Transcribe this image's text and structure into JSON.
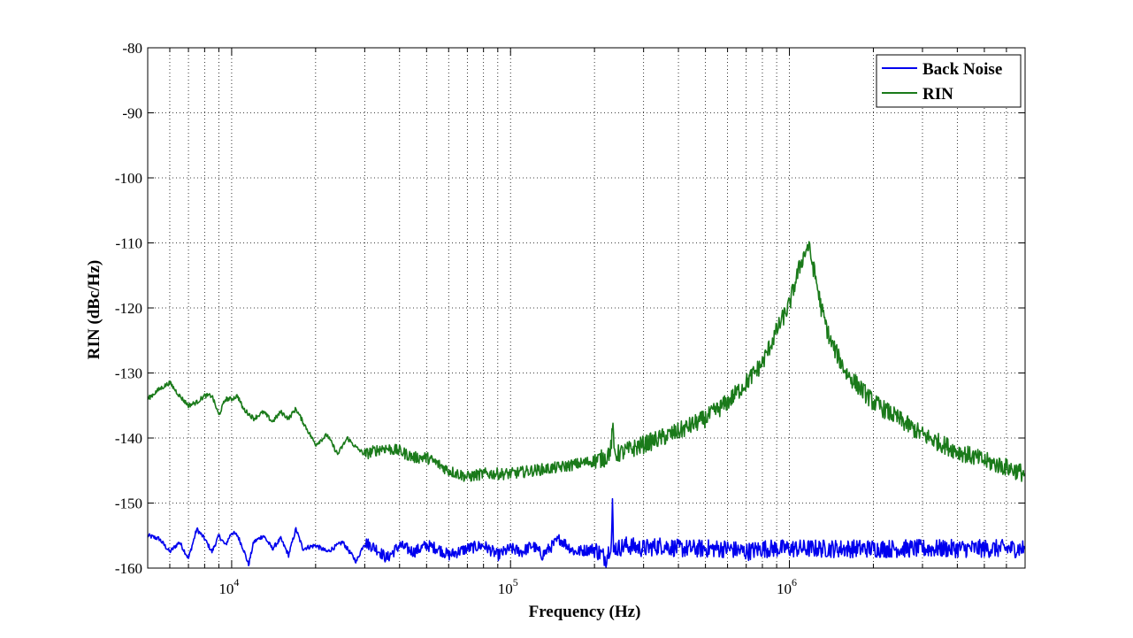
{
  "chart_data": {
    "type": "line",
    "title": "",
    "xlabel": "Frequency (Hz)",
    "ylabel": "RIN (dBc/Hz)",
    "xscale": "log",
    "xlim": [
      5000,
      7000000
    ],
    "ylim": [
      -160,
      -80
    ],
    "yticks": [
      -80,
      -90,
      -100,
      -110,
      -120,
      -130,
      -140,
      -150,
      -160
    ],
    "xticks": [
      {
        "value": 10000,
        "base": "10",
        "exp": "4"
      },
      {
        "value": 100000,
        "base": "10",
        "exp": "5"
      },
      {
        "value": 1000000,
        "base": "10",
        "exp": "6"
      }
    ],
    "grid": true,
    "legend": {
      "placement": "top-right"
    },
    "series": [
      {
        "name": "Back Noise",
        "color": "#0000ee",
        "x": [
          5000,
          5500,
          6000,
          6500,
          7000,
          7500,
          8000,
          8500,
          9000,
          9500,
          10000,
          10500,
          11000,
          11500,
          12000,
          13000,
          14000,
          15000,
          16000,
          17000,
          18000,
          20000,
          22000,
          25000,
          28000,
          30000,
          33000,
          36000,
          40000,
          45000,
          50000,
          55000,
          60000,
          70000,
          80000,
          90000,
          100000,
          110000,
          120000,
          130000,
          150000,
          170000,
          200000,
          220000,
          230000,
          232000,
          234000,
          236000,
          240000,
          260000,
          300000,
          350000,
          400000,
          500000,
          600000,
          700000,
          800000,
          1000000,
          1200000,
          1500000,
          2000000,
          2500000,
          3000000,
          4000000,
          5000000,
          6000000,
          7000000
        ],
        "y": [
          -155.0,
          -155.5,
          -157.5,
          -156.0,
          -158.5,
          -154.0,
          -155.5,
          -157.5,
          -155.0,
          -156.5,
          -154.5,
          -155.0,
          -157.0,
          -159.5,
          -156.0,
          -155.0,
          -157.0,
          -155.5,
          -158.0,
          -154.0,
          -157.0,
          -156.5,
          -157.5,
          -156.0,
          -159.0,
          -156.0,
          -157.0,
          -158.5,
          -156.5,
          -157.5,
          -156.5,
          -157.0,
          -158.0,
          -157.0,
          -156.5,
          -158.0,
          -157.0,
          -157.5,
          -156.5,
          -158.0,
          -155.5,
          -157.5,
          -157.0,
          -158.5,
          -156.0,
          -150.0,
          -157.5,
          -156.5,
          -157.0,
          -156.5,
          -157.0,
          -156.5,
          -157.0,
          -157.0,
          -157.0,
          -157.5,
          -157.0,
          -157.0,
          -157.0,
          -157.0,
          -157.0,
          -157.0,
          -157.0,
          -157.0,
          -157.0,
          -157.0,
          -157.0
        ]
      },
      {
        "name": "RIN",
        "color": "#1a7a1a",
        "x": [
          5000,
          5500,
          6000,
          6500,
          7000,
          7500,
          8000,
          8500,
          9000,
          9500,
          10000,
          10500,
          11000,
          12000,
          13000,
          14000,
          15000,
          16000,
          17000,
          18000,
          20000,
          22000,
          24000,
          26000,
          28000,
          30000,
          35000,
          40000,
          45000,
          50000,
          55000,
          60000,
          70000,
          80000,
          90000,
          100000,
          120000,
          150000,
          200000,
          220000,
          230000,
          232000,
          235000,
          240000,
          260000,
          300000,
          400000,
          500000,
          600000,
          700000,
          800000,
          900000,
          1000000,
          1050000,
          1100000,
          1150000,
          1170000,
          1200000,
          1250000,
          1300000,
          1400000,
          1600000,
          2000000,
          3000000,
          4000000,
          5000000,
          6000000,
          7000000
        ],
        "y": [
          -134.0,
          -132.5,
          -131.5,
          -133.5,
          -135.0,
          -134.5,
          -133.5,
          -133.5,
          -136.5,
          -134.0,
          -134.0,
          -133.5,
          -135.5,
          -137.0,
          -136.0,
          -137.5,
          -136.0,
          -137.0,
          -135.5,
          -137.5,
          -141.0,
          -139.5,
          -142.5,
          -140.0,
          -141.5,
          -142.5,
          -141.5,
          -142.0,
          -143.0,
          -143.0,
          -144.0,
          -145.0,
          -146.0,
          -145.5,
          -145.5,
          -145.5,
          -145.0,
          -144.5,
          -143.5,
          -143.0,
          -141.5,
          -137.5,
          -142.0,
          -142.5,
          -142.0,
          -141.0,
          -139.0,
          -137.0,
          -134.5,
          -131.5,
          -128.5,
          -123.5,
          -119.5,
          -116.0,
          -113.0,
          -111.0,
          -110.5,
          -112.5,
          -116.0,
          -120.0,
          -125.0,
          -130.0,
          -134.5,
          -139.5,
          -142.0,
          -143.5,
          -144.5,
          -145.5
        ]
      }
    ]
  }
}
